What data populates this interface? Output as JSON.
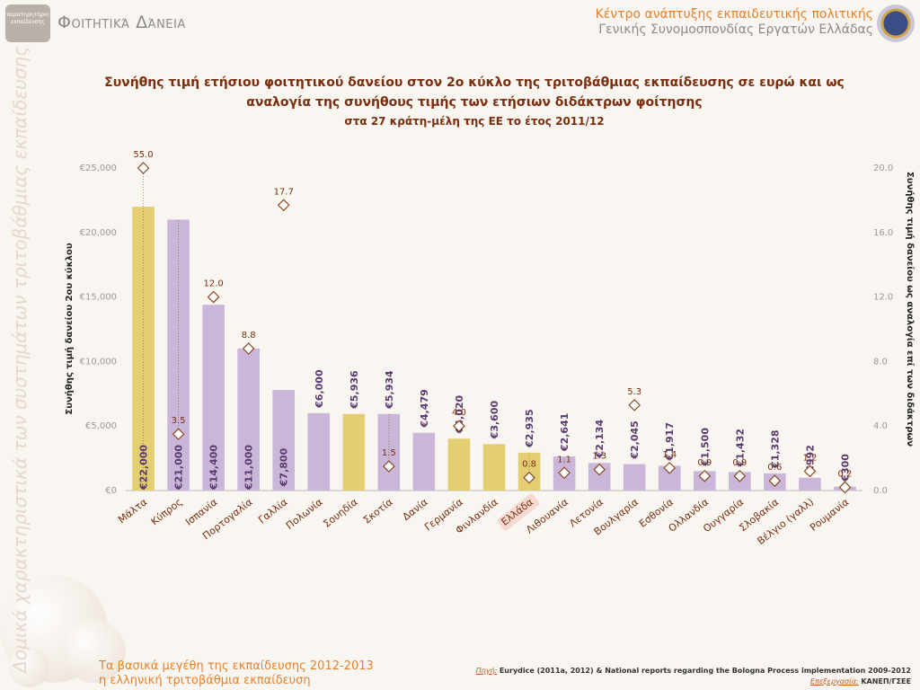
{
  "header": {
    "section_title": "Φοιτητικά Δάνεια",
    "logo_left_text": "παρατηρητήριο εκπαίδευσης",
    "org_line1": "Κέντρο ανάπτυξης εκπαιδευτικής πολιτικής",
    "org_line2": "Γενικής Συνομοσπονδίας Εργατών Ελλάδας"
  },
  "side_text": "Δομικά χαρακτηριστικά των συστημάτων τριτοβάθμιας εκπαίδευσης",
  "footer": {
    "line1": "Τα βασικά μεγέθη της εκπαίδευσης 2012-2013",
    "line2": "η ελληνική τριτοβάθμια εκπαίδευση",
    "source_label": "Πηγή:",
    "source_text": "Eurydice (2011a, 2012) & National reports regarding the Bologna Process implementation 2009-2012",
    "processing_label": "Επεξεργασία:",
    "processing_text": "ΚΑΝΕΠ/ΓΣΕΕ"
  },
  "chart_data": {
    "type": "bar",
    "title_line1": "Συνήθης τιμή ετήσιου φοιτητικού δανείου στον 2ο κύκλο της τριτοβάθμιας εκπαίδευσης σε ευρώ και ως",
    "title_line2": "αναλογία της συνήθους τιμής των ετήσιων διδάκτρων φοίτησης",
    "subtitle": "στα 27 κράτη-μέλη της ΕΕ το έτος 2011/12",
    "ylabel_left": "Συνήθης τιμή δανείου 2ου κύκλου",
    "ylabel_right": "Συνήθης τιμή δανείου ως αναλογία επί των διδάκτρων",
    "ylim_left": [
      0,
      25000
    ],
    "ylim_right": [
      0,
      20
    ],
    "yticks_left": [
      "€0",
      "€5,000",
      "€10,000",
      "€15,000",
      "€20,000",
      "€25,000"
    ],
    "yticks_right": [
      "0.0",
      "4.0",
      "8.0",
      "12.0",
      "16.0",
      "20.0"
    ],
    "categories": [
      "Μάλτα",
      "Κύπρος",
      "Ισπανία",
      "Πορτογαλία",
      "Γαλλία",
      "Πολωνία",
      "Σουηδία",
      "Σκοτία",
      "Δανία",
      "Γερμανία",
      "Φινλανδία",
      "Ελλάδα",
      "Λιθουανία",
      "Λετονία",
      "Βουλγαρία",
      "Εσθονία",
      "Ολλανδία",
      "Ουγγαρία",
      "Σλοβακία",
      "Βέλγιο (γαλλ)",
      "Ρουμανία"
    ],
    "values": [
      22000,
      21000,
      14400,
      11000,
      7800,
      6000,
      5936,
      5934,
      4479,
      4020,
      3600,
      2935,
      2641,
      2134,
      2045,
      1917,
      1500,
      1432,
      1328,
      992,
      300
    ],
    "value_labels": [
      "€22,000",
      "€21,000",
      "€14,400",
      "€11,000",
      "€7,800",
      "€6,000",
      "€5,936",
      "€5,934",
      "€4,479",
      "€4,020",
      "€3,600",
      "€2,935",
      "€2,641",
      "€2,134",
      "€2,045",
      "€1,917",
      "€1,500",
      "€1,432",
      "€1,328",
      "€992",
      "€300"
    ],
    "highlight": [
      true,
      false,
      false,
      false,
      false,
      false,
      true,
      false,
      false,
      true,
      true,
      true,
      false,
      false,
      false,
      false,
      false,
      false,
      false,
      false,
      false
    ],
    "highlight_label": "Ελλάδα",
    "ratios": [
      55.0,
      3.5,
      12.0,
      8.8,
      17.7,
      null,
      null,
      1.5,
      null,
      4.0,
      null,
      0.8,
      1.1,
      1.3,
      5.3,
      1.4,
      0.9,
      0.9,
      0.6,
      1.2,
      0.2
    ],
    "ratio_labels": [
      "55.0",
      "3.5",
      "12.0",
      "8.8",
      "17.7",
      null,
      null,
      "1.5",
      null,
      "4.0",
      null,
      "0.8",
      "1.1",
      "1.3",
      "5.3",
      "1.4",
      "0.9",
      "0.9",
      "0.6",
      "1.2",
      "0.2"
    ],
    "colors": {
      "bar": "#c9b6d8",
      "bar_highlight": "#e3cf72",
      "marker": "#8a4a22",
      "label": "#7a2e0e",
      "greece_bg": "#f6d9d0"
    }
  }
}
